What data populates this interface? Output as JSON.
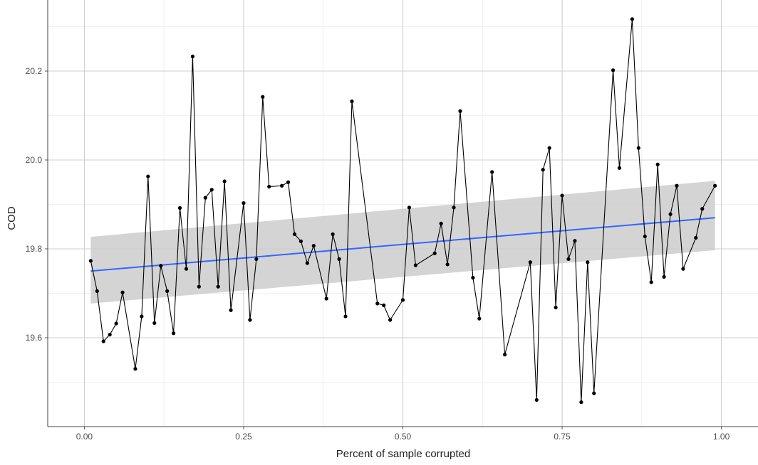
{
  "chart_data": {
    "type": "line",
    "title": "",
    "xlabel": "Percent of sample corrupted",
    "ylabel": "COD",
    "xlim": [
      -0.0575,
      1.0575
    ],
    "ylim": [
      19.4,
      20.36
    ],
    "grid": true,
    "x_ticks": [
      {
        "value": 0.0,
        "label": "0.00"
      },
      {
        "value": 0.25,
        "label": "0.25"
      },
      {
        "value": 0.5,
        "label": "0.50"
      },
      {
        "value": 0.75,
        "label": "0.75"
      },
      {
        "value": 1.0,
        "label": "1.00"
      }
    ],
    "y_ticks": [
      {
        "value": 19.6,
        "label": "19.6"
      },
      {
        "value": 19.8,
        "label": "19.8"
      },
      {
        "value": 20.0,
        "label": "20.0"
      },
      {
        "value": 20.2,
        "label": "20.2"
      }
    ],
    "series": [
      {
        "type": "line+points",
        "x": [
          0.01,
          0.02,
          0.03,
          0.04,
          0.05,
          0.06,
          0.08,
          0.09,
          0.1,
          0.11,
          0.12,
          0.13,
          0.14,
          0.15,
          0.16,
          0.17,
          0.18,
          0.19,
          0.2,
          0.21,
          0.22,
          0.23,
          0.25,
          0.26,
          0.27,
          0.28,
          0.29,
          0.31,
          0.32,
          0.33,
          0.34,
          0.35,
          0.36,
          0.38,
          0.39,
          0.4,
          0.41,
          0.42,
          0.46,
          0.47,
          0.48,
          0.5,
          0.51,
          0.52,
          0.55,
          0.56,
          0.57,
          0.58,
          0.59,
          0.61,
          0.62,
          0.64,
          0.66,
          0.7,
          0.71,
          0.72,
          0.73,
          0.74,
          0.75,
          0.76,
          0.77,
          0.78,
          0.79,
          0.8,
          0.83,
          0.84,
          0.86,
          0.87,
          0.88,
          0.89,
          0.9,
          0.91,
          0.92,
          0.93,
          0.94,
          0.96,
          0.97,
          0.99
        ],
        "y": [
          19.773,
          19.705,
          19.592,
          19.607,
          19.632,
          19.702,
          19.53,
          19.648,
          19.963,
          19.633,
          19.762,
          19.705,
          19.61,
          19.892,
          19.755,
          20.233,
          19.715,
          19.915,
          19.933,
          19.715,
          19.952,
          19.662,
          19.903,
          19.64,
          19.777,
          20.142,
          19.94,
          19.942,
          19.95,
          19.833,
          19.817,
          19.768,
          19.807,
          19.688,
          19.833,
          19.777,
          19.648,
          20.132,
          19.677,
          19.673,
          19.64,
          19.685,
          19.893,
          19.763,
          19.79,
          19.857,
          19.765,
          19.893,
          20.11,
          19.735,
          19.643,
          19.973,
          19.562,
          19.77,
          19.46,
          19.978,
          20.027,
          19.668,
          19.92,
          19.777,
          19.818,
          19.455,
          19.77,
          19.475,
          20.202,
          19.982,
          20.317,
          20.027,
          19.828,
          19.725,
          19.99,
          19.737,
          19.878,
          19.942,
          19.755,
          19.825,
          19.89,
          19.942
        ]
      },
      {
        "type": "smooth-linear",
        "x": [
          0.01,
          0.99
        ],
        "y": [
          19.75,
          19.87
        ],
        "ci_lower": [
          19.677,
          19.797
        ],
        "ci_upper": [
          19.827,
          19.953
        ],
        "colors": {
          "line": "#3366ff",
          "ribbon": "#cccccc"
        }
      }
    ]
  }
}
